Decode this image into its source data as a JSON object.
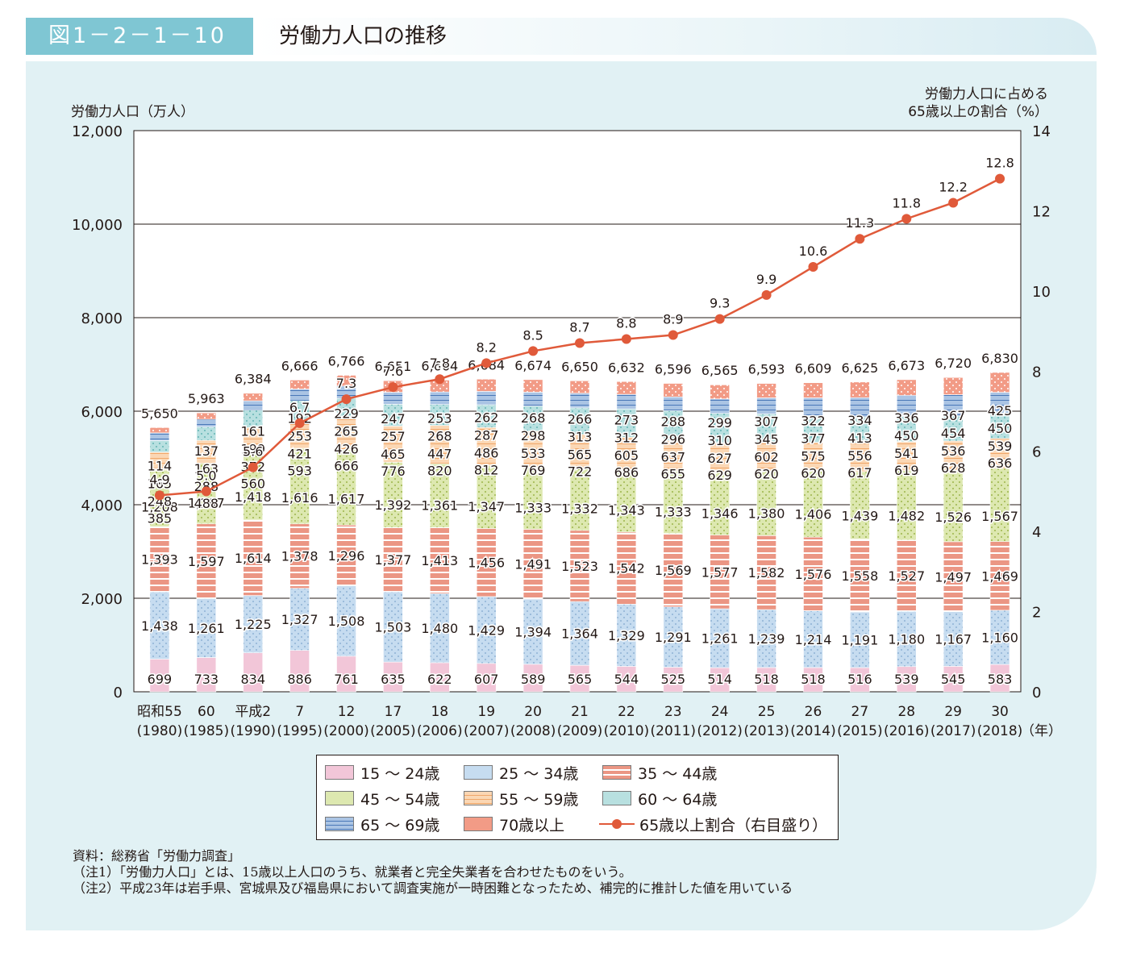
{
  "figure": {
    "number": "図1－2－1－10",
    "title": "労働力人口の推移"
  },
  "axes": {
    "left_label": "労働力人口（万人）",
    "right_label_1": "労働力人口に占める",
    "right_label_2": "65歳以上の割合（%）",
    "year_unit": "（年）"
  },
  "legend": {
    "items": [
      {
        "key": "a1524",
        "label": "15 ～ 24歳"
      },
      {
        "key": "a2534",
        "label": "25 ～ 34歳"
      },
      {
        "key": "a3544",
        "label": "35 ～ 44歳"
      },
      {
        "key": "a4554",
        "label": "45 ～ 54歳"
      },
      {
        "key": "a5559",
        "label": "55 ～ 59歳"
      },
      {
        "key": "a6064",
        "label": "60 ～ 64歳"
      },
      {
        "key": "a6569",
        "label": "65 ～ 69歳"
      },
      {
        "key": "a70",
        "label": "70歳以上"
      },
      {
        "key": "ratio",
        "label": "65歳以上割合（右目盛り）"
      }
    ]
  },
  "notes": {
    "source": "資料：総務省「労働力調査」",
    "note1": "（注1）「労働力人口」とは、15歳以上人口のうち、就業者と完全失業者を合わせたものをいう。",
    "note2": "（注2）平成23年は岩手県、宮城県及び福島県において調査実施が一時困難となったため、補完的に推計した値を用いている"
  },
  "colors": {
    "a1524": "#f2c6d8",
    "a2534": "#c6dcf0",
    "a3544": "#eb9684",
    "a4554": "#dde8b0",
    "a5559": "#fbd7b4",
    "a6064": "#b8e0e0",
    "a6569": "#aac4e4",
    "a70": "#f29b86",
    "ratio": "#e05a3a",
    "panel": "#e1f1f4",
    "badge": "#7fc6d3"
  },
  "chart_data": {
    "type": "bar",
    "stacked": true,
    "title": "労働力人口の推移",
    "categories": [
      "昭和55",
      "60",
      "平成2",
      "7",
      "12",
      "17",
      "18",
      "19",
      "20",
      "21",
      "22",
      "23",
      "24",
      "25",
      "26",
      "27",
      "28",
      "29",
      "30"
    ],
    "categories_ad": [
      "(1980)",
      "(1985)",
      "(1990)",
      "(1995)",
      "(2000)",
      "(2005)",
      "(2006)",
      "(2007)",
      "(2008)",
      "(2009)",
      "(2010)",
      "(2011)",
      "(2012)",
      "(2013)",
      "(2014)",
      "(2015)",
      "(2016)",
      "(2017)",
      "(2018)"
    ],
    "ylabel": "労働力人口（万人）",
    "ylim": [
      0,
      12000
    ],
    "yticks": [
      0,
      2000,
      4000,
      6000,
      8000,
      10000,
      12000
    ],
    "ytick_labels": [
      "0",
      "2,000",
      "4,000",
      "6,000",
      "8,000",
      "10,000",
      "12,000"
    ],
    "y2label": "労働力人口に占める65歳以上の割合（%）",
    "y2lim": [
      0,
      14
    ],
    "y2ticks": [
      0,
      2,
      4,
      6,
      8,
      10,
      12,
      14
    ],
    "grid": true,
    "totals": [
      5650,
      5963,
      6384,
      6666,
      6766,
      6651,
      6664,
      6684,
      6674,
      6650,
      6632,
      6596,
      6565,
      6593,
      6609,
      6625,
      6673,
      6720,
      6830
    ],
    "totals_labels": [
      "5,650",
      "5,963",
      "6,384",
      "6,666",
      "6,766",
      "6,651",
      "6,664",
      "6,684",
      "6,674",
      "6,650",
      "6,632",
      "6,596",
      "6,565",
      "6,593",
      "6,609",
      "6,625",
      "6,673",
      "6,720",
      "6,830"
    ],
    "series": [
      {
        "name": "15 ～ 24歳",
        "key": "a1524",
        "values": [
          699,
          733,
          834,
          886,
          761,
          635,
          622,
          607,
          589,
          565,
          544,
          525,
          514,
          518,
          518,
          516,
          539,
          545,
          583
        ]
      },
      {
        "name": "25 ～ 34歳",
        "key": "a2534",
        "values": [
          1438,
          1261,
          1225,
          1327,
          1508,
          1503,
          1480,
          1429,
          1394,
          1364,
          1329,
          1291,
          1261,
          1239,
          1214,
          1191,
          1180,
          1167,
          1160
        ]
      },
      {
        "name": "35 ～ 44歳",
        "key": "a3544",
        "values": [
          1393,
          1597,
          1614,
          1378,
          1296,
          1377,
          1413,
          1456,
          1491,
          1523,
          1542,
          1569,
          1577,
          1582,
          1576,
          1558,
          1527,
          1497,
          1469
        ]
      },
      {
        "name": "45 ～ 54歳",
        "key": "a4554",
        "values": [
          1208,
          1297,
          1418,
          1616,
          1617,
          1392,
          1361,
          1347,
          1333,
          1332,
          1343,
          1333,
          1346,
          1380,
          1406,
          1439,
          1482,
          1526,
          1567
        ]
      },
      {
        "name": "55 ～ 59歳",
        "key": "a5559",
        "values": [
          385,
          488,
          560,
          593,
          666,
          776,
          820,
          812,
          769,
          722,
          686,
          655,
          629,
          620,
          620,
          617,
          619,
          628,
          636
        ]
      },
      {
        "name": "60 ～ 64歳",
        "key": "a6064",
        "values": [
          248,
          288,
          372,
          421,
          426,
          465,
          447,
          486,
          533,
          565,
          605,
          637,
          627,
          602,
          575,
          556,
          541,
          536,
          539
        ]
      },
      {
        "name": "65 ～ 69歳",
        "key": "a6569",
        "values": [
          165,
          163,
          199,
          253,
          265,
          257,
          268,
          287,
          298,
          313,
          312,
          296,
          310,
          345,
          377,
          413,
          450,
          454,
          450
        ]
      },
      {
        "name": "70歳以上",
        "key": "a70",
        "values": [
          114,
          137,
          161,
          192,
          229,
          247,
          253,
          262,
          268,
          266,
          273,
          288,
          299,
          307,
          322,
          334,
          336,
          367,
          425
        ]
      }
    ],
    "line": {
      "name": "65歳以上割合（右目盛り）",
      "values": [
        4.9,
        5.0,
        5.6,
        6.7,
        7.3,
        7.6,
        7.8,
        8.2,
        8.5,
        8.7,
        8.8,
        8.9,
        9.3,
        9.9,
        10.6,
        11.3,
        11.8,
        12.2,
        12.8
      ]
    }
  }
}
